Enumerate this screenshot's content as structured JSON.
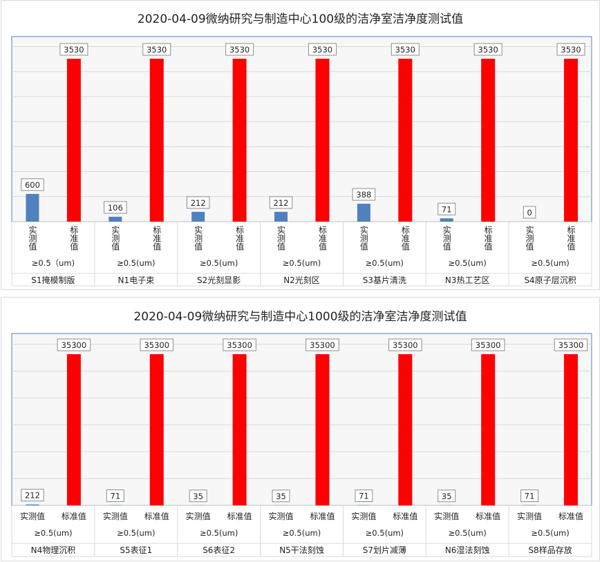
{
  "colors": {
    "actual": "#4f81bd",
    "standard": "#ff0000",
    "plot_bg": "#f7f7f7",
    "plot_border": "#4f81bd",
    "grid": "#d9d9d9"
  },
  "chart_data": [
    {
      "type": "bar",
      "title": "2020-04-09微纳研究与制造中心100级的洁净室洁净度测试值",
      "series_labels": [
        "实测值",
        "标准值"
      ],
      "series": [
        {
          "name": "实测值",
          "values": [
            600,
            106,
            212,
            212,
            388,
            71,
            0
          ]
        },
        {
          "name": "标准值",
          "values": [
            3530,
            3530,
            3530,
            3530,
            3530,
            3530,
            3530
          ]
        }
      ],
      "particle_sizes": [
        "≥0.5（um)",
        "≥0.5(um)",
        "≥0.5(um)",
        "≥0.5(um)",
        "≥0.5(um)",
        "≥0.5(um)",
        "≥0.5(um)"
      ],
      "categories": [
        "S1掩模制版",
        "N1电子束",
        "S2光刻显影",
        "N2光刻区",
        "S3基片清洗",
        "N3热工艺区",
        "S4原子层沉积"
      ],
      "ylim": [
        0,
        3530
      ],
      "grid": true,
      "bar_label_orientation": "vertical"
    },
    {
      "type": "bar",
      "title": "2020-04-09微纳研究与制造中心1000级的洁净室洁净度测试值",
      "series_labels": [
        "实测值",
        "标准值"
      ],
      "series": [
        {
          "name": "实测值",
          "values": [
            212,
            71,
            35,
            35,
            71,
            35,
            71
          ]
        },
        {
          "name": "标准值",
          "values": [
            35300,
            35300,
            35300,
            35300,
            35300,
            35300,
            35300
          ]
        }
      ],
      "particle_sizes": [
        "≥0.5(um)",
        "≥0.5(um)",
        "≥0.5(um)",
        "≥0.5(um)",
        "≥0.5(um)",
        "≥0.5(um)",
        "≥0.5(um)"
      ],
      "categories": [
        "N4物理沉积",
        "S5表征1",
        "S6表征2",
        "N5干法刻蚀",
        "S7划片减薄",
        "N6湿法刻蚀",
        "S8样品存放"
      ],
      "ylim": [
        0,
        35300
      ],
      "grid": true,
      "bar_label_orientation": "horizontal"
    }
  ]
}
